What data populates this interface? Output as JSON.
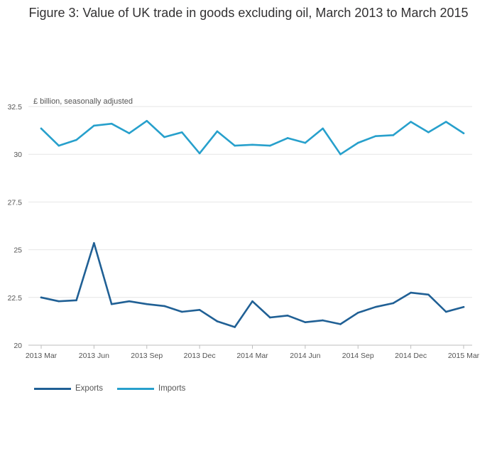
{
  "title": "Figure 3: Value of UK trade in goods excluding oil, March 2013 to March 2015",
  "colors": {
    "exports": "#206095",
    "imports": "#27a0cc",
    "grid": "#e6e6e6"
  },
  "chart_data": {
    "type": "line",
    "title": "Figure 3: Value of UK trade in goods excluding oil, March 2013 to March 2015",
    "ylabel": "£ billion, seasonally adjusted",
    "xlabel": "",
    "ylim": [
      20,
      32.5
    ],
    "yticks": [
      20,
      22.5,
      25,
      27.5,
      30,
      32.5
    ],
    "grid": true,
    "legend_position": "bottom-left",
    "x": [
      "2013 Mar",
      "2013 Apr",
      "2013 May",
      "2013 Jun",
      "2013 Jul",
      "2013 Aug",
      "2013 Sep",
      "2013 Oct",
      "2013 Nov",
      "2013 Dec",
      "2014 Jan",
      "2014 Feb",
      "2014 Mar",
      "2014 Apr",
      "2014 May",
      "2014 Jun",
      "2014 Jul",
      "2014 Aug",
      "2014 Sep",
      "2014 Oct",
      "2014 Nov",
      "2014 Dec",
      "2015 Jan",
      "2015 Feb",
      "2015 Mar"
    ],
    "xtick_labels": [
      "2013 Mar",
      "2013 Jun",
      "2013 Sep",
      "2013 Dec",
      "2014 Mar",
      "2014 Jun",
      "2014 Sep",
      "2014 Dec",
      "2015 Mar"
    ],
    "series": [
      {
        "name": "Exports",
        "color": "#206095",
        "values": [
          22.5,
          22.3,
          22.35,
          25.35,
          22.15,
          22.3,
          22.15,
          22.05,
          21.75,
          21.85,
          21.25,
          20.95,
          22.3,
          21.45,
          21.55,
          21.2,
          21.3,
          21.1,
          21.7,
          22.0,
          22.2,
          22.75,
          22.65,
          21.75,
          22.0
        ]
      },
      {
        "name": "Imports",
        "color": "#27a0cc",
        "values": [
          31.35,
          30.45,
          30.75,
          31.5,
          31.6,
          31.1,
          31.75,
          30.9,
          31.15,
          30.05,
          31.2,
          30.45,
          30.5,
          30.45,
          30.85,
          30.6,
          31.35,
          30.0,
          30.6,
          30.95,
          31.0,
          31.7,
          31.15,
          31.7,
          31.1
        ]
      }
    ]
  }
}
